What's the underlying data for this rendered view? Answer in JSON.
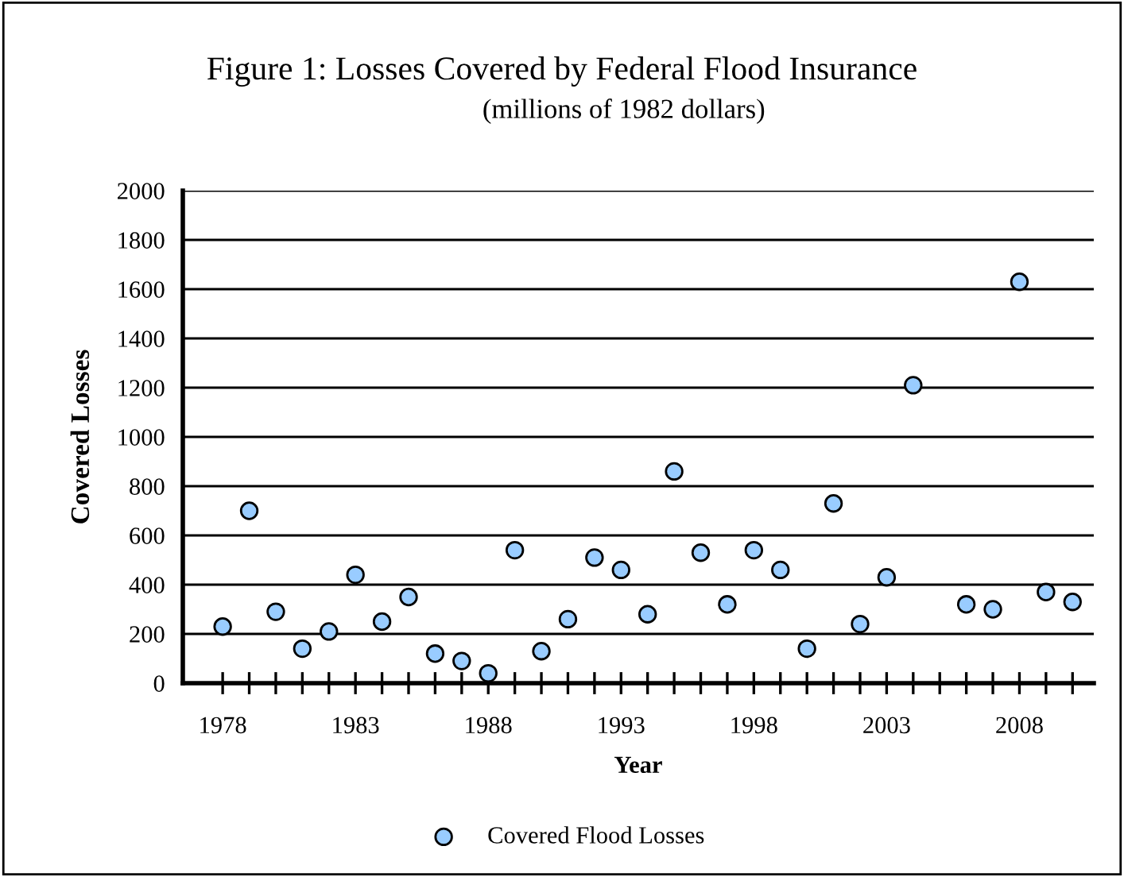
{
  "chart_data": {
    "type": "scatter",
    "title": "Figure 1: Losses Covered by Federal Flood Insurance",
    "subtitle": "(millions of 1982 dollars)",
    "xlabel": "Year",
    "ylabel": "Covered Losses",
    "x": [
      1978,
      1979,
      1980,
      1981,
      1982,
      1983,
      1984,
      1985,
      1986,
      1987,
      1988,
      1989,
      1990,
      1991,
      1992,
      1993,
      1994,
      1995,
      1996,
      1997,
      1998,
      1999,
      2000,
      2001,
      2002,
      2003,
      2004,
      2006,
      2007,
      2008,
      2009,
      2010
    ],
    "series": [
      {
        "name": "Covered Flood Losses",
        "color": "#99ccff",
        "values": [
          230,
          700,
          290,
          140,
          210,
          440,
          250,
          350,
          120,
          90,
          40,
          540,
          130,
          260,
          510,
          460,
          280,
          860,
          530,
          320,
          540,
          460,
          140,
          730,
          240,
          430,
          1210,
          320,
          300,
          1630,
          370,
          330
        ]
      }
    ],
    "xlim": [
      1976.5,
      2010.8
    ],
    "xticks": [
      1978,
      {
        "value": 1979,
        "label": null
      },
      {
        "value": 1980,
        "label": null
      },
      {
        "value": 1981,
        "label": null
      },
      {
        "value": 1982,
        "label": null
      },
      1983,
      {
        "value": 1984,
        "label": null
      },
      {
        "value": 1985,
        "label": null
      },
      {
        "value": 1986,
        "label": null
      },
      {
        "value": 1987,
        "label": null
      },
      1988,
      {
        "value": 1989,
        "label": null
      },
      {
        "value": 1990,
        "label": null
      },
      {
        "value": 1991,
        "label": null
      },
      {
        "value": 1992,
        "label": null
      },
      1993,
      {
        "value": 1994,
        "label": null
      },
      {
        "value": 1995,
        "label": null
      },
      {
        "value": 1996,
        "label": null
      },
      {
        "value": 1997,
        "label": null
      },
      1998,
      {
        "value": 1999,
        "label": null
      },
      {
        "value": 2000,
        "label": null
      },
      {
        "value": 2001,
        "label": null
      },
      {
        "value": 2002,
        "label": null
      },
      2003,
      {
        "value": 2004,
        "label": null
      },
      {
        "value": 2005,
        "label": null
      },
      {
        "value": 2006,
        "label": null
      },
      {
        "value": 2007,
        "label": null
      },
      2008,
      {
        "value": 2009,
        "label": null
      },
      {
        "value": 2010,
        "label": null
      }
    ],
    "ylim": [
      0,
      2000
    ],
    "yticks": [
      0,
      200,
      400,
      600,
      800,
      1000,
      1200,
      1400,
      1600,
      1800,
      2000
    ],
    "grid": "y",
    "legend": "bottom",
    "marker": "circle"
  }
}
